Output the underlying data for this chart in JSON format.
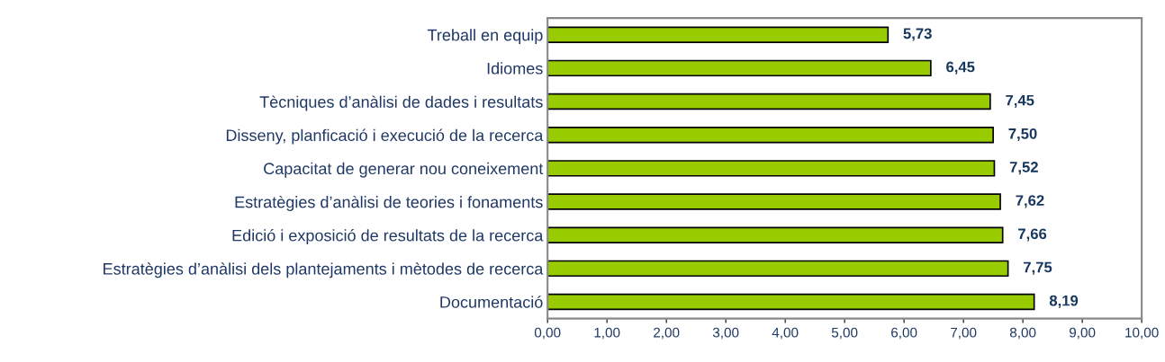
{
  "chart_data": {
    "type": "bar",
    "orientation": "horizontal",
    "categories": [
      "Treball en equip",
      "Idiomes",
      "Tècniques d’anàlisi de dades i resultats",
      "Disseny, planficació i execució de la recerca",
      "Capacitat de generar nou coneixement",
      "Estratègies d’anàlisi de teories i fonaments",
      "Edició i exposició de resultats de la recerca",
      "Estratègies d’anàlisi dels plantejaments i mètodes de recerca",
      "Documentació"
    ],
    "values": [
      5.73,
      6.45,
      7.45,
      7.5,
      7.52,
      7.62,
      7.66,
      7.75,
      8.19
    ],
    "value_labels": [
      "5,73",
      "6,45",
      "7,45",
      "7,50",
      "7,52",
      "7,62",
      "7,66",
      "7,75",
      "8,19"
    ],
    "color": "#99cc00",
    "xlim": [
      0,
      10
    ],
    "xticks": [
      {
        "value": 0,
        "label": "0,00"
      },
      {
        "value": 1,
        "label": "1,00"
      },
      {
        "value": 2,
        "label": "2,00"
      },
      {
        "value": 3,
        "label": "3,00"
      },
      {
        "value": 4,
        "label": "4,00"
      },
      {
        "value": 5,
        "label": "5,00"
      },
      {
        "value": 6,
        "label": "6,00"
      },
      {
        "value": 7,
        "label": "7,00"
      },
      {
        "value": 8,
        "label": "8,00"
      },
      {
        "value": 9,
        "label": "9,00"
      },
      {
        "value": 10,
        "label": "10,00"
      }
    ],
    "grid": false,
    "legend": false
  }
}
